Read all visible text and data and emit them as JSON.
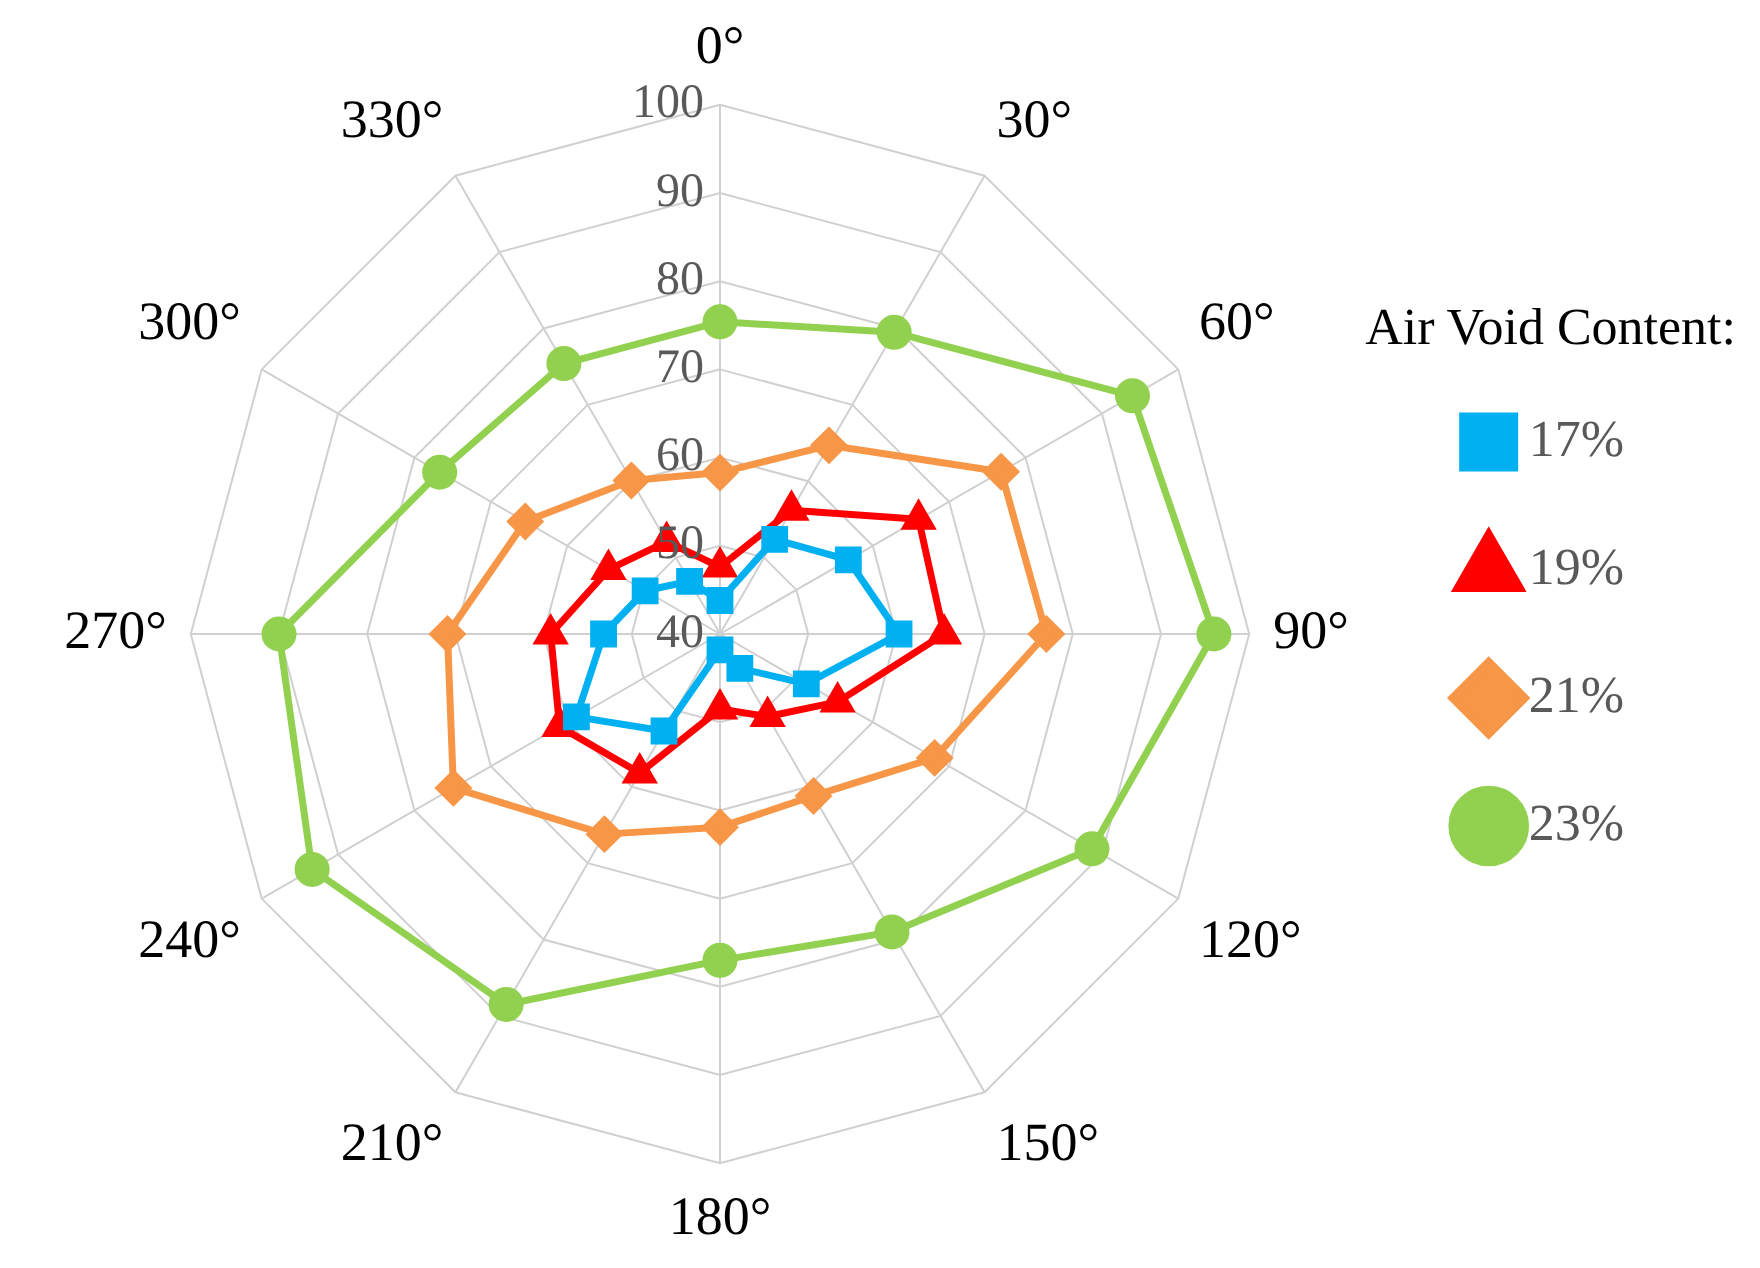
{
  "chart_data": {
    "type": "radar",
    "categories": [
      "0°",
      "30°",
      "60°",
      "90°",
      "120°",
      "150°",
      "180°",
      "210°",
      "240°",
      "270°",
      "300°",
      "330°"
    ],
    "series": [
      {
        "name": "17%",
        "color": "#00b0f0",
        "marker": "square",
        "values": [
          43.8,
          52.4,
          56.8,
          60.3,
          51.3,
          44.5,
          41.8,
          52.7,
          58.8,
          53.2,
          49.8,
          46.9
        ]
      },
      {
        "name": "19%",
        "color": "#ff0000",
        "marker": "triangle",
        "values": [
          47.6,
          56.2,
          66,
          65.4,
          55.4,
          50.8,
          48.5,
          58.2,
          61,
          59.2,
          54.6,
          52.1
        ]
      },
      {
        "name": "21%",
        "color": "#f79646",
        "marker": "diamond",
        "values": [
          58.3,
          64.7,
          76.8,
          77,
          68.1,
          61.2,
          61.9,
          66.2,
          74.9,
          70.9,
          65.5,
          60.1
        ]
      },
      {
        "name": "23%",
        "color": "#92d050",
        "marker": "circle",
        "values": [
          75.4,
          79.5,
          94,
          96,
          88.7,
          79,
          77,
          88.5,
          93.4,
          90,
          76.7,
          75.4
        ]
      }
    ],
    "legend_title": "Air Void Content:",
    "legend": "right",
    "ylim": [
      40,
      100
    ],
    "yticks": [
      40,
      50,
      60,
      70,
      80,
      90,
      100
    ],
    "grid": true,
    "line_style": "solid"
  }
}
